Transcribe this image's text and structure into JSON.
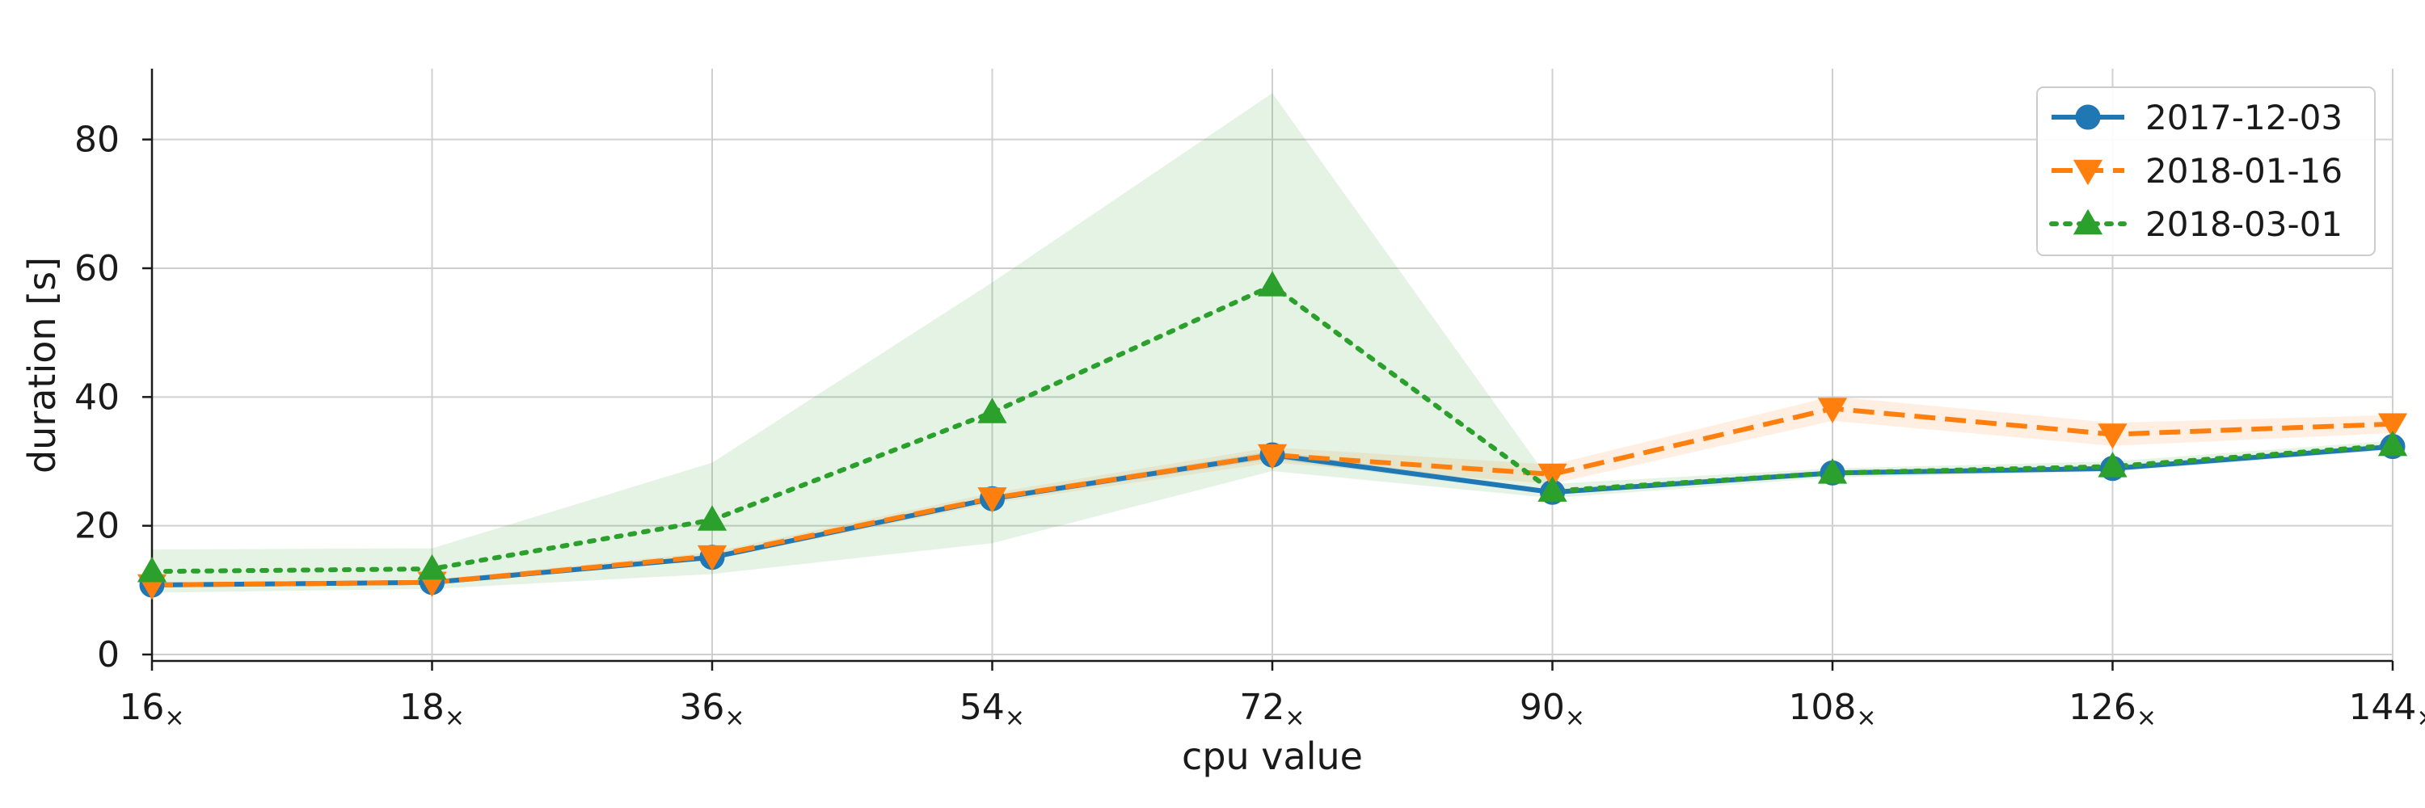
{
  "chart_data": {
    "type": "line",
    "title": "",
    "xlabel": "cpu value",
    "ylabel": "duration [s]",
    "categories": [
      "16",
      "18",
      "36",
      "54",
      "72",
      "90",
      "108",
      "126",
      "144"
    ],
    "category_suffix": "×",
    "yticks": [
      0,
      20,
      40,
      60,
      80
    ],
    "ylim": [
      -1,
      91
    ],
    "grid": true,
    "legend_position": "top-right",
    "series": [
      {
        "name": "2017-12-03",
        "color": "#1f77b4",
        "marker": "circle",
        "line_style": "solid",
        "values": [
          10.8,
          11.2,
          15.1,
          24.2,
          31.0,
          25.2,
          28.2,
          28.9,
          32.3
        ],
        "band_lower": [
          10.5,
          10.9,
          14.7,
          23.8,
          30.4,
          24.8,
          27.8,
          28.5,
          31.9
        ],
        "band_upper": [
          11.1,
          11.5,
          15.5,
          24.6,
          31.6,
          25.6,
          28.6,
          29.3,
          32.7
        ]
      },
      {
        "name": "2018-01-16",
        "color": "#ff7f0e",
        "marker": "triangle-down",
        "line_style": "dashed",
        "values": [
          10.8,
          11.2,
          15.3,
          24.3,
          31.0,
          28.0,
          38.2,
          34.2,
          35.8
        ],
        "band_lower": [
          10.4,
          10.8,
          14.7,
          23.5,
          29.8,
          26.5,
          36.3,
          32.4,
          34.4
        ],
        "band_upper": [
          11.2,
          11.6,
          15.9,
          25.1,
          32.2,
          29.5,
          40.1,
          36.0,
          37.2
        ]
      },
      {
        "name": "2018-03-01",
        "color": "#2ca02c",
        "marker": "triangle-up",
        "line_style": "dotted",
        "values": [
          12.9,
          13.3,
          20.9,
          37.6,
          57.3,
          25.4,
          28.2,
          29.2,
          32.5
        ],
        "band_lower": [
          9.6,
          10.2,
          12.5,
          17.3,
          28.5,
          24.3,
          27.5,
          28.4,
          31.8
        ],
        "band_upper": [
          16.3,
          16.5,
          29.8,
          57.8,
          87.2,
          26.5,
          28.9,
          30.0,
          33.2
        ]
      }
    ]
  }
}
